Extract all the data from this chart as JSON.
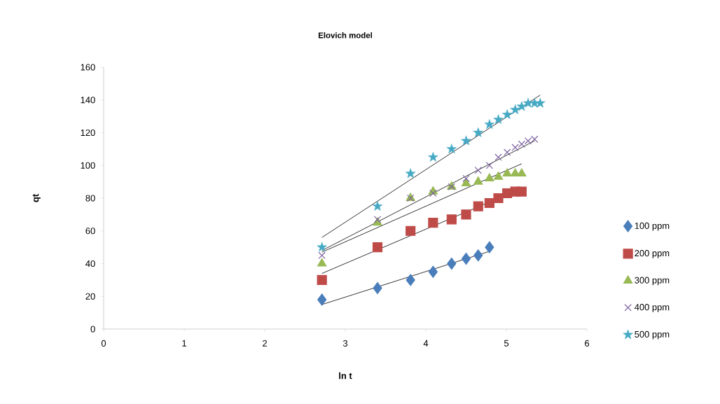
{
  "chart_data": {
    "type": "scatter",
    "title": "Elovich model",
    "xlabel": "ln t",
    "ylabel": "qt",
    "xlim": [
      0,
      6
    ],
    "xticks": [
      0,
      1,
      2,
      3,
      4,
      5,
      6
    ],
    "ylim": [
      0,
      160
    ],
    "yticks": [
      0,
      20,
      40,
      60,
      80,
      100,
      120,
      140,
      160
    ],
    "grid": false,
    "legend": "right",
    "series": [
      {
        "name": "100 ppm",
        "color": "#4a7ebb",
        "marker": "diamond",
        "x": [
          2.71,
          3.4,
          3.81,
          4.09,
          4.32,
          4.5,
          4.65,
          4.79
        ],
        "values": [
          18,
          25,
          30,
          35,
          40,
          43,
          45,
          50
        ]
      },
      {
        "name": "200 ppm",
        "color": "#be4b48",
        "marker": "square",
        "x": [
          2.71,
          3.4,
          3.81,
          4.09,
          4.32,
          4.5,
          4.65,
          4.79,
          4.9,
          5.01,
          5.11,
          5.19
        ],
        "values": [
          30,
          50,
          60,
          65,
          67,
          70,
          75,
          77,
          80,
          83,
          84,
          84
        ]
      },
      {
        "name": "300 ppm",
        "color": "#98b954",
        "marker": "triangle",
        "x": [
          2.71,
          3.4,
          3.81,
          4.09,
          4.32,
          4.5,
          4.65,
          4.79,
          4.9,
          5.01,
          5.11,
          5.19
        ],
        "values": [
          40,
          65,
          80,
          84,
          87,
          89,
          90,
          92,
          93,
          95,
          95,
          95
        ]
      },
      {
        "name": "400 ppm",
        "color": "#7d60a0",
        "marker": "cross",
        "x": [
          2.71,
          3.4,
          3.81,
          4.09,
          4.32,
          4.5,
          4.65,
          4.79,
          4.9,
          5.01,
          5.11,
          5.19,
          5.27,
          5.35
        ],
        "values": [
          45,
          67,
          80,
          83,
          87,
          92,
          97,
          100,
          105,
          108,
          111,
          113,
          115,
          116
        ]
      },
      {
        "name": "500 ppm",
        "color": "#46aac5",
        "marker": "star",
        "x": [
          2.71,
          3.4,
          3.81,
          4.09,
          4.32,
          4.5,
          4.65,
          4.79,
          4.9,
          5.01,
          5.11,
          5.19,
          5.27,
          5.35,
          5.42
        ],
        "values": [
          50,
          75,
          95,
          105,
          110,
          115,
          120,
          125,
          128,
          131,
          134,
          136,
          138,
          138,
          138
        ]
      },
      {
        "type": "line",
        "color": "#000000",
        "marker": "none",
        "x": [
          2.71,
          4.79
        ],
        "values": [
          15,
          47.5
        ]
      },
      {
        "type": "line",
        "color": "#000000",
        "marker": "none",
        "x": [
          2.71,
          5.19
        ],
        "values": [
          34,
          86
        ]
      },
      {
        "type": "line",
        "color": "#000000",
        "marker": "none",
        "x": [
          2.71,
          5.19
        ],
        "values": [
          47,
          101
        ]
      },
      {
        "type": "line",
        "color": "#000000",
        "marker": "none",
        "x": [
          2.71,
          5.35
        ],
        "values": [
          48,
          115
        ]
      },
      {
        "type": "line",
        "color": "#000000",
        "marker": "none",
        "x": [
          2.71,
          5.42
        ],
        "values": [
          56,
          143
        ]
      }
    ]
  }
}
